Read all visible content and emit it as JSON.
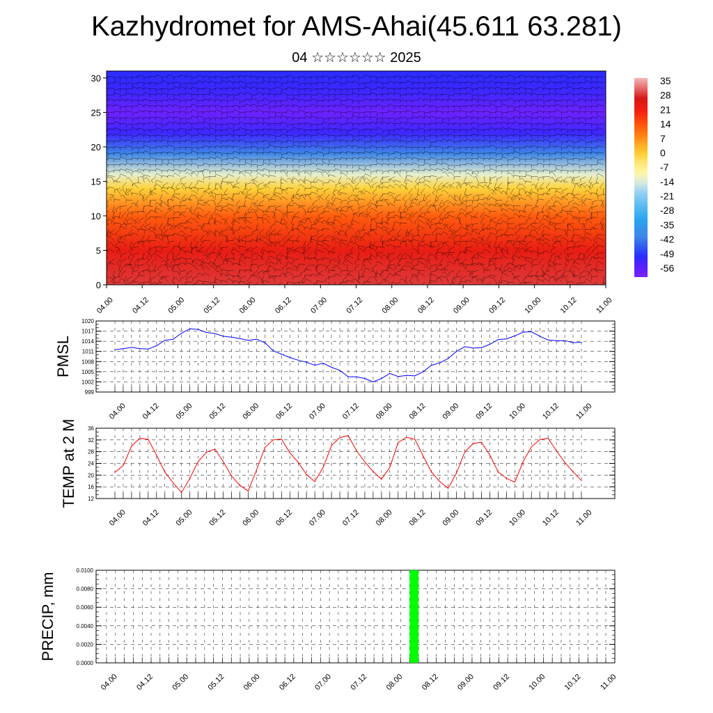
{
  "header": {
    "title": "Kazhydromet for AMS-Ahai(45.611 63.281)",
    "subtitle": "04 ☆☆☆☆☆☆ 2025"
  },
  "time_labels": [
    "04.00",
    "04.12",
    "05.00",
    "05.12",
    "06.00",
    "06.12",
    "07.00",
    "07.12",
    "08.00",
    "08.12",
    "09.00",
    "09.12",
    "10.00",
    "10.12",
    "11.00"
  ],
  "chart_data": [
    {
      "type": "heatmap",
      "y_ticks": [
        0,
        5,
        10,
        15,
        20,
        25,
        30
      ],
      "ylim": [
        0,
        31
      ],
      "colorbar_labels": [
        35,
        28,
        21,
        14,
        7,
        0,
        -7,
        -14,
        -21,
        -28,
        -35,
        -42,
        -49,
        -56
      ],
      "colorbar_range": [
        -60,
        38
      ],
      "temperature_profile": [
        {
          "height": 0,
          "value": 30
        },
        {
          "height": 5,
          "value": 24
        },
        {
          "height": 10,
          "value": 14
        },
        {
          "height": 14,
          "value": 0
        },
        {
          "height": 16,
          "value": -12
        },
        {
          "height": 19,
          "value": -40
        },
        {
          "height": 22,
          "value": -52
        },
        {
          "height": 25,
          "value": -58
        },
        {
          "height": 28,
          "value": -52
        },
        {
          "height": 31,
          "value": -50
        }
      ],
      "wind_barbs": true
    },
    {
      "type": "line",
      "ylabel": "PMSL",
      "y_ticks": [
        999,
        1002,
        1005,
        1008,
        1011,
        1014,
        1017,
        1020
      ],
      "ylim": [
        999,
        1020
      ],
      "color": "#0000ff",
      "x": [
        0,
        1,
        2,
        3,
        4,
        5,
        6,
        7,
        8,
        9,
        10,
        11,
        12,
        13,
        14,
        15,
        16,
        17,
        18,
        19,
        20,
        21,
        22,
        23,
        24,
        25,
        26,
        27,
        28,
        29,
        30,
        31,
        32,
        33,
        34,
        35,
        36,
        37,
        38,
        39,
        40,
        41,
        42,
        43,
        44,
        45,
        46,
        47,
        48,
        49,
        50,
        51,
        52,
        53,
        54,
        55,
        56
      ],
      "values": [
        1011.5,
        1011.8,
        1012.2,
        1011.8,
        1011.7,
        1012.7,
        1014.3,
        1014.6,
        1016.4,
        1017.7,
        1017.5,
        1016.6,
        1016.3,
        1015.5,
        1015.2,
        1014.8,
        1014.3,
        1014.6,
        1013.6,
        1011.2,
        1010.2,
        1009.2,
        1008.4,
        1007.8,
        1006.9,
        1007.5,
        1006.3,
        1005.4,
        1003.5,
        1003.5,
        1003.0,
        1002.0,
        1003.0,
        1004.5,
        1003.6,
        1003.9,
        1003.8,
        1005.0,
        1006.9,
        1007.6,
        1008.9,
        1011.0,
        1012.4,
        1012.0,
        1012.1,
        1013.1,
        1014.5,
        1014.7,
        1015.6,
        1016.7,
        1016.8,
        1015.5,
        1014.4,
        1014.2,
        1014.2,
        1013.6,
        1013.7
      ]
    },
    {
      "type": "line",
      "ylabel": "TEMP at 2 M",
      "y_ticks": [
        12,
        16,
        20,
        24,
        28,
        32,
        36
      ],
      "ylim": [
        12,
        36
      ],
      "color": "#ff0000",
      "x": [
        0,
        1,
        2,
        3,
        4,
        5,
        6,
        7,
        8,
        9,
        10,
        11,
        12,
        13,
        14,
        15,
        16,
        17,
        18,
        19,
        20,
        21,
        22,
        23,
        24,
        25,
        26,
        27,
        28,
        29,
        30,
        31,
        32,
        33,
        34,
        35,
        36,
        37,
        38,
        39,
        40,
        41,
        42,
        43,
        44,
        45,
        46,
        47,
        48,
        49,
        50,
        51,
        52,
        53,
        54,
        55,
        56
      ],
      "values": [
        20.9,
        23.3,
        29.9,
        32.6,
        32.2,
        26.8,
        21.0,
        17.3,
        14.1,
        18.9,
        24.7,
        27.8,
        28.9,
        24.7,
        19.7,
        16.5,
        14.6,
        21.7,
        29.4,
        32.0,
        32.3,
        27.6,
        24.4,
        20.2,
        17.8,
        22.6,
        30.1,
        32.8,
        33.5,
        28.4,
        24.5,
        21.2,
        18.6,
        22.6,
        31.1,
        32.9,
        32.3,
        26.5,
        21.1,
        17.8,
        15.5,
        20.6,
        27.9,
        30.8,
        31.2,
        26.9,
        21.1,
        18.9,
        17.6,
        24.6,
        29.6,
        32.1,
        32.6,
        28.3,
        24.4,
        21.1,
        18.1
      ]
    },
    {
      "type": "bar",
      "ylabel": "PRECIP, mm",
      "y_ticks": [
        "0.0000",
        "0.0020",
        "0.0040",
        "0.0060",
        "0.0080",
        "0.0100"
      ],
      "ylim": [
        0,
        0.01
      ],
      "color": "#00ff00",
      "bars": [
        {
          "x": 34.5,
          "value": 0.01
        }
      ]
    }
  ]
}
